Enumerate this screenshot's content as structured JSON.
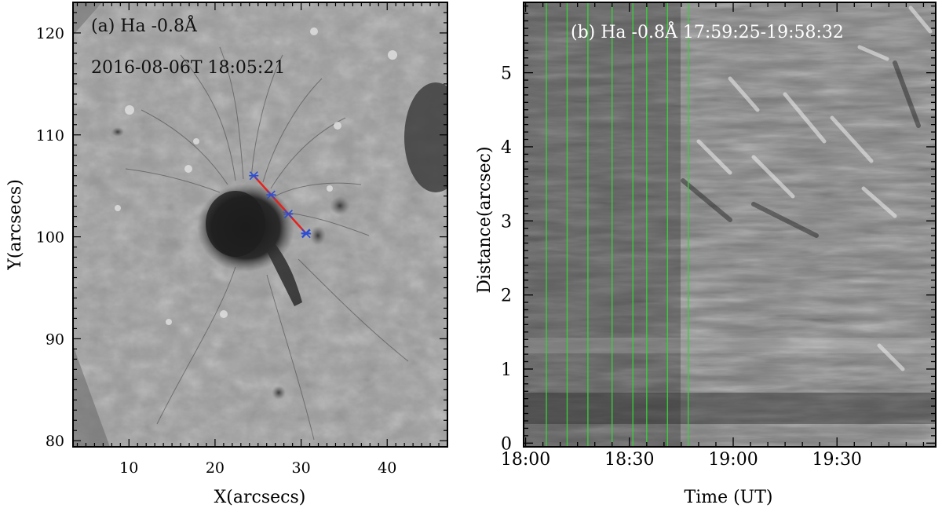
{
  "chart_data": [
    {
      "type": "image",
      "panel": "a",
      "annotation_line1": "(a) Ha  -0.8Å",
      "annotation_line2": "2016-08-06T 18:05:21",
      "xlabel": "X(arcsecs)",
      "ylabel": "Y(arcsecs)",
      "xlim": [
        3.5,
        47.0
      ],
      "ylim": [
        79.4,
        123.0
      ],
      "xticks": [
        10,
        20,
        30,
        40
      ],
      "xtick_labels": [
        "10",
        "20",
        "30",
        "40"
      ],
      "yticks": [
        80,
        90,
        100,
        110,
        120
      ],
      "ytick_labels": [
        "80",
        "90",
        "100",
        "110",
        "120"
      ],
      "slit": {
        "start": [
          24.5,
          106.0
        ],
        "end": [
          30.6,
          100.3
        ],
        "line_color": "#e8201c",
        "marker_color": "#2a4fd6"
      }
    },
    {
      "type": "image",
      "panel": "b",
      "annotation": "(b) Ha  -0.8Å  17:59:25-19:58:32",
      "xlabel": "Time (UT)",
      "ylabel": "Distance(arcsec)",
      "xlim": [
        "17:59:25",
        "19:58:32"
      ],
      "ylim": [
        -0.05,
        5.95
      ],
      "xticks": [
        "18:00",
        "18:30",
        "19:00",
        "19:30"
      ],
      "xtick_labels": [
        "18:00",
        "18:30",
        "19:00",
        "19:30"
      ],
      "yticks": [
        0,
        1,
        2,
        3,
        4,
        5
      ],
      "ytick_labels": [
        "0",
        "1",
        "2",
        "3",
        "4",
        "5"
      ],
      "marker_times": [
        "18:06",
        "18:12",
        "18:18",
        "18:25",
        "18:31",
        "18:35",
        "18:41",
        "18:47"
      ],
      "marker_color": "#35d435"
    }
  ]
}
